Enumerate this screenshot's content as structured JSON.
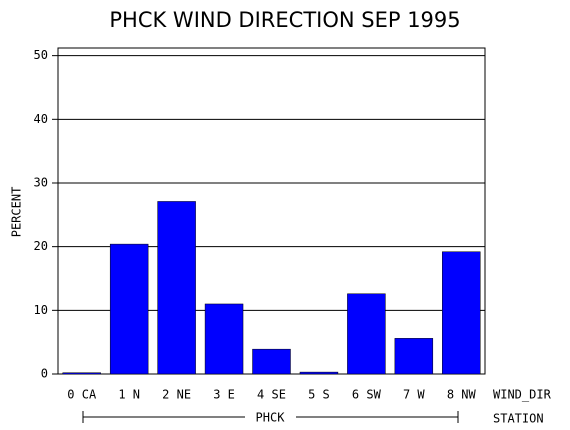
{
  "chart_data": {
    "type": "bar",
    "title": "PHCK WIND DIRECTION SEP 1995",
    "categories": [
      "0 CA",
      "1 N",
      "2 NE",
      "3 E",
      "4 SE",
      "5 S",
      "6 SW",
      "7 W",
      "8 NW"
    ],
    "values": [
      0.2,
      20.4,
      27.1,
      11.0,
      3.9,
      0.3,
      12.6,
      5.6,
      19.2
    ],
    "color": "#0000ff",
    "ylim": [
      0,
      51.2
    ],
    "yticks": [
      0,
      10,
      20,
      30,
      40,
      50
    ],
    "grid": true,
    "y_label": "PERCENT",
    "x_label": "WIND_DIR",
    "group_label": "PHCK",
    "group_axis_label": "STATION"
  }
}
